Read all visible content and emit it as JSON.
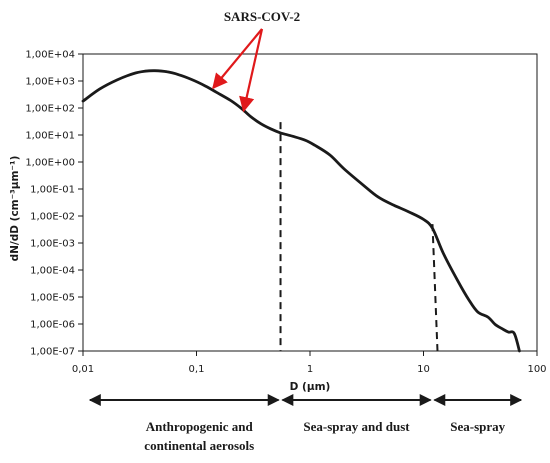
{
  "chart_data": {
    "type": "line",
    "x_scale": "log",
    "y_scale": "log",
    "xlabel": "D (µm)",
    "ylabel": "dN/dD (cm⁻³µm⁻¹)",
    "xlim": [
      0.01,
      100
    ],
    "ylim": [
      1e-07,
      10000
    ],
    "x_ticks": [
      {
        "value": 0.01,
        "label": "0,01"
      },
      {
        "value": 0.1,
        "label": "0,1"
      },
      {
        "value": 1,
        "label": "1"
      },
      {
        "value": 10,
        "label": "10"
      },
      {
        "value": 100,
        "label": "100"
      }
    ],
    "y_ticks": [
      {
        "value": 10000,
        "label": "1,00E+04"
      },
      {
        "value": 1000,
        "label": "1,00E+03"
      },
      {
        "value": 100,
        "label": "1,00E+02"
      },
      {
        "value": 10,
        "label": "1,00E+01"
      },
      {
        "value": 1,
        "label": "1,00E+00"
      },
      {
        "value": 0.1,
        "label": "1,00E-01"
      },
      {
        "value": 0.01,
        "label": "1,00E-02"
      },
      {
        "value": 0.001,
        "label": "1,00E-03"
      },
      {
        "value": 0.0001,
        "label": "1,00E-04"
      },
      {
        "value": 1e-05,
        "label": "1,00E-05"
      },
      {
        "value": 1e-06,
        "label": "1,00E-06"
      },
      {
        "value": 1e-07,
        "label": "1,00E-07"
      }
    ],
    "series": [
      {
        "x": [
          0.01,
          0.014,
          0.02,
          0.028,
          0.035,
          0.043,
          0.055,
          0.07,
          0.09,
          0.12,
          0.15,
          0.2,
          0.25,
          0.3,
          0.37,
          0.45,
          0.55,
          0.7,
          0.9,
          1.1,
          1.5,
          2.0,
          3.0,
          4.0,
          5.5,
          7.5,
          10,
          12,
          15,
          20,
          25,
          30,
          37,
          43,
          50,
          56,
          63,
          70
        ],
        "y": [
          180,
          500,
          1100,
          1900,
          2300,
          2400,
          2200,
          1700,
          1150,
          650,
          380,
          190,
          95,
          48,
          26,
          17,
          12,
          9,
          6.5,
          4.2,
          1.8,
          0.55,
          0.13,
          0.05,
          0.025,
          0.014,
          0.0075,
          0.0035,
          0.0004,
          4e-05,
          8e-06,
          2.8e-06,
          1.8e-06,
          9.5e-07,
          6.5e-07,
          5e-07,
          4.5e-07,
          1e-07
        ]
      }
    ],
    "vlines": [
      {
        "x": 0.55,
        "y_top": 30
      },
      {
        "x": 12,
        "y_top": 0.005
      }
    ],
    "annotation": {
      "text": "SARS-COV-2",
      "targets": [
        {
          "x": 0.14,
          "y": 550
        },
        {
          "x": 0.26,
          "y": 78
        }
      ]
    },
    "regions": [
      {
        "label_lines": [
          "Anthropogenic and",
          "continental aerosols"
        ],
        "x_start": 0.01,
        "x_end": 0.55
      },
      {
        "label_lines": [
          "Sea-spray and dust"
        ],
        "x_start": 0.55,
        "x_end": 12
      },
      {
        "label_lines": [
          "Sea-spray"
        ],
        "x_start": 12,
        "x_end": 100
      }
    ]
  }
}
